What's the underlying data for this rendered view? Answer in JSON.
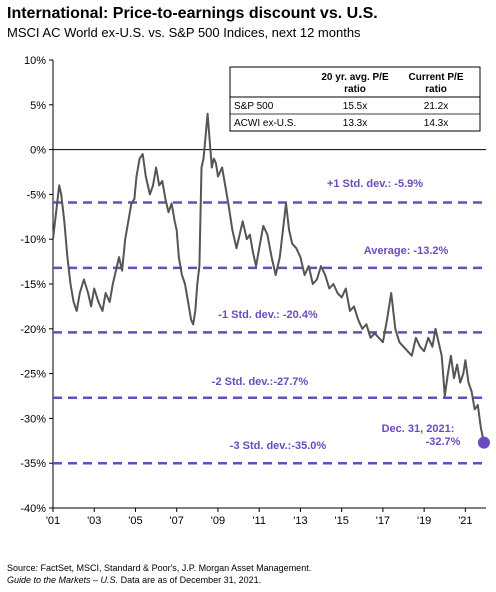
{
  "title": "International: Price-to-earnings discount vs. U.S.",
  "subtitle": "MSCI AC World ex-U.S. vs. S&P 500 Indices, next 12 months",
  "footer": {
    "source": "Source: FactSet, MSCI, Standard & Poor's, J.P. Morgan Asset Management.",
    "guide_italic": "Guide to the Markets – U.S.",
    "guide_rest": " Data are as of December 31, 2021."
  },
  "colors": {
    "line": "#555555",
    "accent": "#6a4bbf",
    "axis": "#000000"
  },
  "table": {
    "headers": [
      "",
      "20 yr. avg. P/E ratio",
      "Current P/E ratio"
    ],
    "rows": [
      [
        "S&P 500",
        "15.5x",
        "21.2x"
      ],
      [
        "ACWI ex-U.S.",
        "13.3x",
        "14.3x"
      ]
    ]
  },
  "chart_data": {
    "type": "line",
    "ylim": [
      -40,
      10
    ],
    "xlim": [
      2001.0,
      2022.0
    ],
    "yticks": [
      "10%",
      "5%",
      "0%",
      "-5%",
      "-10%",
      "-15%",
      "-20%",
      "-25%",
      "-30%",
      "-35%",
      "-40%"
    ],
    "ytick_values": [
      10,
      5,
      0,
      -5,
      -10,
      -15,
      -20,
      -25,
      -30,
      -35,
      -40
    ],
    "xticks": [
      "'01",
      "'03",
      "'05",
      "'07",
      "'09",
      "'11",
      "'13",
      "'15",
      "'17",
      "'19",
      "'21"
    ],
    "xtick_values": [
      2001,
      2003,
      2005,
      2007,
      2009,
      2011,
      2013,
      2015,
      2017,
      2019,
      2021
    ],
    "series": [
      {
        "x": [
          2001.0,
          2001.15,
          2001.3,
          2001.4,
          2001.55,
          2001.7,
          2001.85,
          2002.0,
          2002.15,
          2002.3,
          2002.5,
          2002.7,
          2002.85,
          2003.0,
          2003.2,
          2003.4,
          2003.55,
          2003.75,
          2003.9,
          2004.0,
          2004.2,
          2004.35,
          2004.5,
          2004.65,
          2004.8,
          2004.95,
          2005.05,
          2005.2,
          2005.35,
          2005.5,
          2005.7,
          2005.85,
          2006.0,
          2006.15,
          2006.3,
          2006.45,
          2006.6,
          2006.75,
          2006.9,
          2007.0,
          2007.1,
          2007.25,
          2007.4,
          2007.55,
          2007.7,
          2007.8,
          2007.9,
          2008.0,
          2008.1,
          2008.2,
          2008.3,
          2008.4,
          2008.5,
          2008.6,
          2008.7,
          2008.8,
          2008.9,
          2009.0,
          2009.2,
          2009.35,
          2009.5,
          2009.7,
          2009.9,
          2010.0,
          2010.2,
          2010.4,
          2010.55,
          2010.7,
          2010.85,
          2011.0,
          2011.2,
          2011.4,
          2011.6,
          2011.8,
          2012.0,
          2012.15,
          2012.3,
          2012.45,
          2012.6,
          2012.8,
          2013.0,
          2013.2,
          2013.4,
          2013.6,
          2013.8,
          2014.0,
          2014.2,
          2014.4,
          2014.6,
          2014.8,
          2015.0,
          2015.2,
          2015.4,
          2015.6,
          2015.8,
          2016.0,
          2016.2,
          2016.4,
          2016.6,
          2016.8,
          2017.0,
          2017.2,
          2017.4,
          2017.6,
          2017.8,
          2018.0,
          2018.2,
          2018.4,
          2018.6,
          2018.8,
          2019.0,
          2019.2,
          2019.4,
          2019.55,
          2019.7,
          2019.85,
          2020.0,
          2020.15,
          2020.3,
          2020.45,
          2020.6,
          2020.75,
          2020.9,
          2021.0,
          2021.15,
          2021.3,
          2021.45,
          2021.6,
          2021.75,
          2021.9
        ],
        "values": [
          -10.0,
          -7.0,
          -4.0,
          -5.0,
          -8.0,
          -12.0,
          -15.0,
          -17.0,
          -18.0,
          -16.0,
          -14.5,
          -16.0,
          -17.5,
          -15.5,
          -17.0,
          -18.0,
          -16.0,
          -17.0,
          -15.0,
          -14.0,
          -12.0,
          -13.5,
          -10.0,
          -8.0,
          -6.0,
          -5.5,
          -3.0,
          -1.0,
          -0.5,
          -3.0,
          -5.0,
          -4.0,
          -2.0,
          -4.0,
          -3.5,
          -5.5,
          -7.0,
          -6.0,
          -8.0,
          -9.0,
          -12.0,
          -14.0,
          -15.0,
          -17.0,
          -19.0,
          -19.5,
          -18.0,
          -15.0,
          -13.0,
          -2.0,
          -1.0,
          1.5,
          4.0,
          1.0,
          -2.0,
          -1.0,
          -1.5,
          -3.0,
          -2.0,
          -4.0,
          -6.0,
          -9.0,
          -11.0,
          -10.0,
          -8.0,
          -10.0,
          -9.5,
          -11.5,
          -13.0,
          -11.0,
          -8.5,
          -9.5,
          -12.0,
          -14.0,
          -12.0,
          -9.0,
          -6.0,
          -9.0,
          -10.5,
          -11.0,
          -12.0,
          -14.0,
          -13.0,
          -15.0,
          -14.5,
          -13.0,
          -14.0,
          -15.5,
          -15.0,
          -16.0,
          -16.5,
          -15.5,
          -18.0,
          -17.5,
          -19.0,
          -20.0,
          -19.5,
          -21.0,
          -20.5,
          -21.0,
          -21.5,
          -19.0,
          -16.0,
          -20.0,
          -21.5,
          -22.0,
          -22.5,
          -23.0,
          -21.0,
          -22.0,
          -22.5,
          -21.0,
          -22.0,
          -20.0,
          -21.5,
          -23.0,
          -27.5,
          -25.0,
          -23.0,
          -25.5,
          -24.0,
          -26.0,
          -25.0,
          -23.5,
          -26.0,
          -27.0,
          -29.0,
          -28.5,
          -31.0,
          -32.7
        ]
      }
    ],
    "reference_lines": [
      {
        "y": -5.9,
        "label": "+1 Std. dev.: -5.9%"
      },
      {
        "y": -13.2,
        "label": "Average: -13.2%"
      },
      {
        "y": -20.4,
        "label": "-1 Std. dev.: -20.4%"
      },
      {
        "y": -27.7,
        "label": "-2 Std. dev.:-27.7%"
      },
      {
        "y": -35.0,
        "label": "-3 Std. dev.:-35.0%"
      }
    ],
    "annotation": {
      "x": 2021.9,
      "y": -32.7,
      "line1": "Dec. 31, 2021:",
      "line2": "-32.7%"
    }
  }
}
